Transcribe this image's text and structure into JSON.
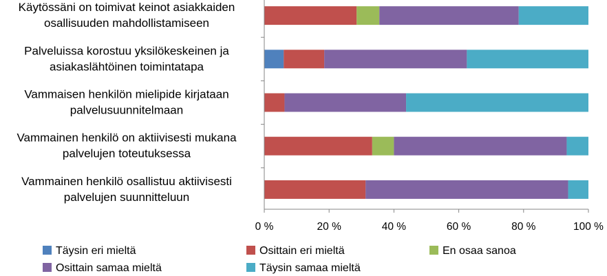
{
  "chart_data": {
    "type": "bar",
    "orientation": "horizontal",
    "stacked": "percent",
    "title": "",
    "xlabel": "",
    "ylabel": "",
    "xlim": [
      0,
      100
    ],
    "x_ticks": [
      "0 %",
      "20 %",
      "40 %",
      "60 %",
      "80 %",
      "100 %"
    ],
    "grid": false,
    "legend_position": "bottom",
    "categories": [
      [
        "Käytössäni on toimivat keinot asiakkaiden",
        "osallisuuden mahdollistamiseen"
      ],
      [
        "Palveluissa korostuu yksilökeskeinen ja",
        "asiakaslähtöinen toimintatapa"
      ],
      [
        "Vammaisen henkilön mielipide kirjataan",
        "palvelusuunnitelmaan"
      ],
      [
        "Vammainen henkilö on aktiivisesti mukana",
        "palvelujen toteutuksessa"
      ],
      [
        "Vammainen henkilö osallistuu aktiivisesti",
        "palvelujen suunnitteluun"
      ]
    ],
    "series": [
      {
        "name": "Täysin eri mieltä",
        "color": "#4F81BD",
        "values": [
          0,
          6,
          0,
          0,
          0
        ]
      },
      {
        "name": "Osittain eri mieltä",
        "color": "#C0504D",
        "values": [
          28.5,
          12.5,
          6.25,
          33.3,
          31.25
        ]
      },
      {
        "name": "En osaa sanoa",
        "color": "#9BBB59",
        "values": [
          7,
          0,
          0,
          6.7,
          0
        ]
      },
      {
        "name": "Osittain samaa mieltä",
        "color": "#8064A2",
        "values": [
          43,
          44,
          37.5,
          53.3,
          62.5
        ]
      },
      {
        "name": "Täysin samaa mieltä",
        "color": "#4BACC6",
        "values": [
          21.5,
          37.5,
          56.25,
          6.7,
          6.25
        ]
      }
    ]
  }
}
